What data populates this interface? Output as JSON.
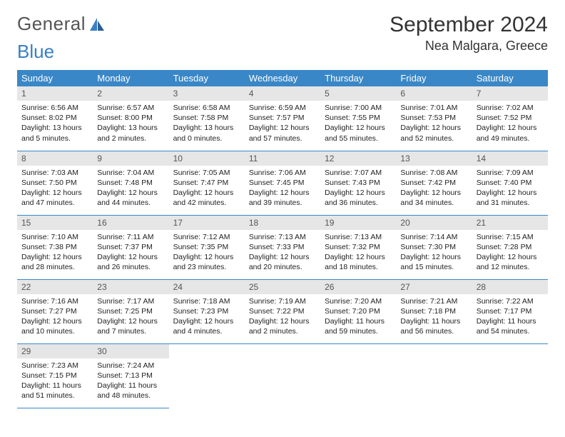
{
  "logo": {
    "text1": "General",
    "text2": "Blue"
  },
  "title": "September 2024",
  "location": "Nea Malgara, Greece",
  "colors": {
    "header_bg": "#3a87c7",
    "header_text": "#ffffff",
    "daynum_bg": "#e6e6e6",
    "border": "#3a87c7",
    "logo_blue": "#3a7fc4"
  },
  "weekdays": [
    "Sunday",
    "Monday",
    "Tuesday",
    "Wednesday",
    "Thursday",
    "Friday",
    "Saturday"
  ],
  "weeks": [
    [
      {
        "n": "1",
        "sr": "Sunrise: 6:56 AM",
        "ss": "Sunset: 8:02 PM",
        "dl": "Daylight: 13 hours and 5 minutes."
      },
      {
        "n": "2",
        "sr": "Sunrise: 6:57 AM",
        "ss": "Sunset: 8:00 PM",
        "dl": "Daylight: 13 hours and 2 minutes."
      },
      {
        "n": "3",
        "sr": "Sunrise: 6:58 AM",
        "ss": "Sunset: 7:58 PM",
        "dl": "Daylight: 13 hours and 0 minutes."
      },
      {
        "n": "4",
        "sr": "Sunrise: 6:59 AM",
        "ss": "Sunset: 7:57 PM",
        "dl": "Daylight: 12 hours and 57 minutes."
      },
      {
        "n": "5",
        "sr": "Sunrise: 7:00 AM",
        "ss": "Sunset: 7:55 PM",
        "dl": "Daylight: 12 hours and 55 minutes."
      },
      {
        "n": "6",
        "sr": "Sunrise: 7:01 AM",
        "ss": "Sunset: 7:53 PM",
        "dl": "Daylight: 12 hours and 52 minutes."
      },
      {
        "n": "7",
        "sr": "Sunrise: 7:02 AM",
        "ss": "Sunset: 7:52 PM",
        "dl": "Daylight: 12 hours and 49 minutes."
      }
    ],
    [
      {
        "n": "8",
        "sr": "Sunrise: 7:03 AM",
        "ss": "Sunset: 7:50 PM",
        "dl": "Daylight: 12 hours and 47 minutes."
      },
      {
        "n": "9",
        "sr": "Sunrise: 7:04 AM",
        "ss": "Sunset: 7:48 PM",
        "dl": "Daylight: 12 hours and 44 minutes."
      },
      {
        "n": "10",
        "sr": "Sunrise: 7:05 AM",
        "ss": "Sunset: 7:47 PM",
        "dl": "Daylight: 12 hours and 42 minutes."
      },
      {
        "n": "11",
        "sr": "Sunrise: 7:06 AM",
        "ss": "Sunset: 7:45 PM",
        "dl": "Daylight: 12 hours and 39 minutes."
      },
      {
        "n": "12",
        "sr": "Sunrise: 7:07 AM",
        "ss": "Sunset: 7:43 PM",
        "dl": "Daylight: 12 hours and 36 minutes."
      },
      {
        "n": "13",
        "sr": "Sunrise: 7:08 AM",
        "ss": "Sunset: 7:42 PM",
        "dl": "Daylight: 12 hours and 34 minutes."
      },
      {
        "n": "14",
        "sr": "Sunrise: 7:09 AM",
        "ss": "Sunset: 7:40 PM",
        "dl": "Daylight: 12 hours and 31 minutes."
      }
    ],
    [
      {
        "n": "15",
        "sr": "Sunrise: 7:10 AM",
        "ss": "Sunset: 7:38 PM",
        "dl": "Daylight: 12 hours and 28 minutes."
      },
      {
        "n": "16",
        "sr": "Sunrise: 7:11 AM",
        "ss": "Sunset: 7:37 PM",
        "dl": "Daylight: 12 hours and 26 minutes."
      },
      {
        "n": "17",
        "sr": "Sunrise: 7:12 AM",
        "ss": "Sunset: 7:35 PM",
        "dl": "Daylight: 12 hours and 23 minutes."
      },
      {
        "n": "18",
        "sr": "Sunrise: 7:13 AM",
        "ss": "Sunset: 7:33 PM",
        "dl": "Daylight: 12 hours and 20 minutes."
      },
      {
        "n": "19",
        "sr": "Sunrise: 7:13 AM",
        "ss": "Sunset: 7:32 PM",
        "dl": "Daylight: 12 hours and 18 minutes."
      },
      {
        "n": "20",
        "sr": "Sunrise: 7:14 AM",
        "ss": "Sunset: 7:30 PM",
        "dl": "Daylight: 12 hours and 15 minutes."
      },
      {
        "n": "21",
        "sr": "Sunrise: 7:15 AM",
        "ss": "Sunset: 7:28 PM",
        "dl": "Daylight: 12 hours and 12 minutes."
      }
    ],
    [
      {
        "n": "22",
        "sr": "Sunrise: 7:16 AM",
        "ss": "Sunset: 7:27 PM",
        "dl": "Daylight: 12 hours and 10 minutes."
      },
      {
        "n": "23",
        "sr": "Sunrise: 7:17 AM",
        "ss": "Sunset: 7:25 PM",
        "dl": "Daylight: 12 hours and 7 minutes."
      },
      {
        "n": "24",
        "sr": "Sunrise: 7:18 AM",
        "ss": "Sunset: 7:23 PM",
        "dl": "Daylight: 12 hours and 4 minutes."
      },
      {
        "n": "25",
        "sr": "Sunrise: 7:19 AM",
        "ss": "Sunset: 7:22 PM",
        "dl": "Daylight: 12 hours and 2 minutes."
      },
      {
        "n": "26",
        "sr": "Sunrise: 7:20 AM",
        "ss": "Sunset: 7:20 PM",
        "dl": "Daylight: 11 hours and 59 minutes."
      },
      {
        "n": "27",
        "sr": "Sunrise: 7:21 AM",
        "ss": "Sunset: 7:18 PM",
        "dl": "Daylight: 11 hours and 56 minutes."
      },
      {
        "n": "28",
        "sr": "Sunrise: 7:22 AM",
        "ss": "Sunset: 7:17 PM",
        "dl": "Daylight: 11 hours and 54 minutes."
      }
    ],
    [
      {
        "n": "29",
        "sr": "Sunrise: 7:23 AM",
        "ss": "Sunset: 7:15 PM",
        "dl": "Daylight: 11 hours and 51 minutes."
      },
      {
        "n": "30",
        "sr": "Sunrise: 7:24 AM",
        "ss": "Sunset: 7:13 PM",
        "dl": "Daylight: 11 hours and 48 minutes."
      },
      null,
      null,
      null,
      null,
      null
    ]
  ]
}
